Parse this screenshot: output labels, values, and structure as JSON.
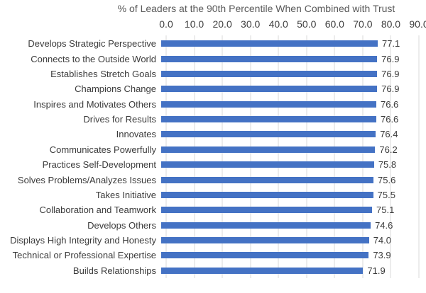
{
  "chart_data": {
    "type": "bar",
    "orientation": "horizontal",
    "title": "% of Leaders at the 90th Percentile When Combined with Trust",
    "categories": [
      "Develops Strategic Perspective",
      "Connects to the Outside World",
      "Establishes Stretch Goals",
      "Champions Change",
      "Inspires and Motivates Others",
      "Drives for Results",
      "Innovates",
      "Communicates Powerfully",
      "Practices Self-Development",
      "Solves Problems/Analyzes Issues",
      "Takes Initiative",
      "Collaboration and Teamwork",
      "Develops Others",
      "Displays High Integrity and Honesty",
      "Technical or Professional Expertise",
      "Builds Relationships"
    ],
    "values": [
      77.1,
      76.9,
      76.9,
      76.9,
      76.6,
      76.6,
      76.4,
      76.2,
      75.8,
      75.6,
      75.5,
      75.1,
      74.6,
      74.0,
      73.9,
      71.9
    ],
    "value_labels": [
      "77.1",
      "76.9",
      "76.9",
      "76.9",
      "76.6",
      "76.6",
      "76.4",
      "76.2",
      "75.8",
      "75.6",
      "75.5",
      "75.1",
      "74.6",
      "74.0",
      "73.9",
      "71.9"
    ],
    "x_ticks": [
      "0.0",
      "10.0",
      "20.0",
      "30.0",
      "40.0",
      "50.0",
      "60.0",
      "70.0",
      "80.0",
      "90.0"
    ],
    "xlim": [
      0,
      90
    ],
    "xlabel": "",
    "ylabel": "",
    "grid": "vertical",
    "legend": "none",
    "value_labels_position": "end-of-bar",
    "bar_color": "#4472C4",
    "gridline_color": "#D9D9D9",
    "title_color": "#595959",
    "text_color": "#3B3B3B"
  }
}
